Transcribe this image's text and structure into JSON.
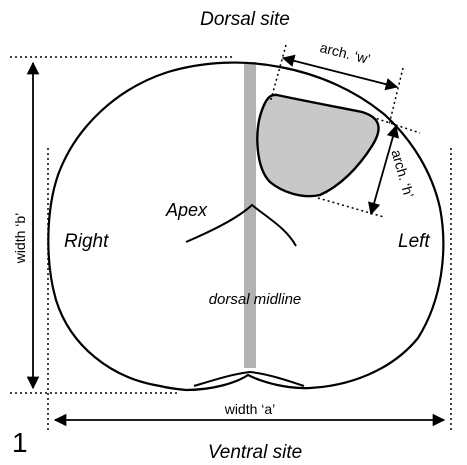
{
  "figure_number": "1",
  "labels": {
    "dorsal_site": "Dorsal site",
    "ventral_site": "Ventral site",
    "right": "Right",
    "left": "Left",
    "apex": "Apex",
    "dorsal_midline": "dorsal midline",
    "width_a": "width ‘a’",
    "width_b": "width ‘b’",
    "arch_w": "arch. ‘w’",
    "arch_h": "arch. ‘h’"
  },
  "colors": {
    "outline": "#000000",
    "midline_band": "#b3b3b3",
    "lesion_fill": "#c8c8c8",
    "background": "#ffffff"
  }
}
